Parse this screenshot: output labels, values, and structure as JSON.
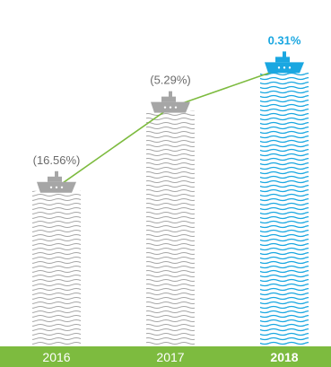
{
  "chart_data": {
    "type": "bar",
    "categories": [
      "2016",
      "2017",
      "2018"
    ],
    "values": [
      -16.56,
      -5.29,
      0.31
    ],
    "data_labels": [
      "(16.56%)",
      "(5.29%)",
      "0.31%"
    ],
    "ylim": [
      -20,
      2
    ],
    "grid": false,
    "legend": "none",
    "highlight_index": 2
  },
  "colors": {
    "bar_default": "#a6a6a6",
    "bar_highlight": "#1aa7e1",
    "label_default": "#6b6b6b",
    "label_highlight": "#1aa7e1",
    "trend_line": "#7dbb3f",
    "axis_band": "#7dbb3f",
    "axis_text": "#ffffff"
  },
  "icons": {
    "marker": "ship-icon",
    "bar_fill": "wave-pattern"
  }
}
